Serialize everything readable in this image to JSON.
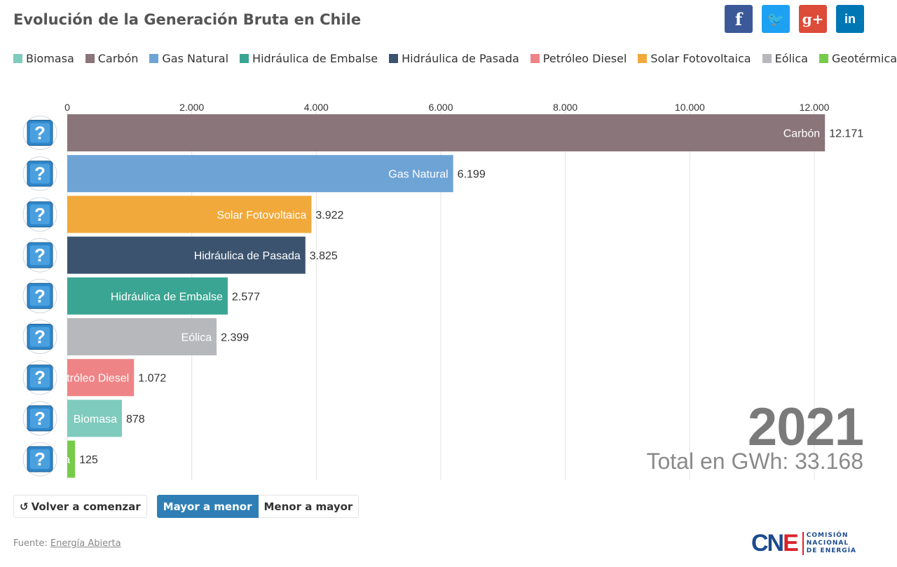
{
  "header": {
    "title": "Evolución de la Generación Bruta en Chile"
  },
  "social": [
    {
      "name": "facebook-icon",
      "glyph": "f",
      "color": "#3b5998"
    },
    {
      "name": "twitter-icon",
      "glyph": "🐦",
      "color": "#1da1f2"
    },
    {
      "name": "google-plus-icon",
      "glyph": "g+",
      "color": "#dd4b39"
    },
    {
      "name": "linkedin-icon",
      "glyph": "in",
      "color": "#0077b5"
    }
  ],
  "legend": [
    {
      "label": "Biomasa",
      "color": "#7fcbbd"
    },
    {
      "label": "Carbón",
      "color": "#8a757b"
    },
    {
      "label": "Gas Natural",
      "color": "#6ea3d6"
    },
    {
      "label": "Hidráulica de Embalse",
      "color": "#3aa592"
    },
    {
      "label": "Hidráulica de Pasada",
      "color": "#3b536e"
    },
    {
      "label": "Petróleo Diesel",
      "color": "#ef8486"
    },
    {
      "label": "Solar Fotovoltaica",
      "color": "#f2a93b"
    },
    {
      "label": "Eólica",
      "color": "#b6b8bc"
    },
    {
      "label": "Geotérmica",
      "color": "#76cc4a"
    }
  ],
  "chart_data": {
    "type": "bar",
    "orientation": "horizontal",
    "categories": [
      "Carbón",
      "Gas Natural",
      "Solar Fotovoltaica",
      "Hidráulica de Pasada",
      "Hidráulica de Embalse",
      "Eólica",
      "Petróleo Diesel",
      "Biomasa",
      "Geotérmica"
    ],
    "values": [
      12171,
      6199,
      3922,
      3825,
      2577,
      2399,
      1072,
      878,
      125
    ],
    "value_labels": [
      "12.171",
      "6.199",
      "3.922",
      "3.825",
      "2.577",
      "2.399",
      "1.072",
      "878",
      "125"
    ],
    "bar_labels": [
      "Carbón",
      "Gas Natural",
      "Solar Fotovoltaica",
      "Hidráulica de Pasada",
      "Hidráulica de Embalse",
      "Eólica",
      "Petróleo Diesel",
      "Biomasa",
      "Geotérmica"
    ],
    "colors": [
      "#8a757b",
      "#6ea3d6",
      "#f2a93b",
      "#3b536e",
      "#3aa592",
      "#b6b8bc",
      "#ef8486",
      "#7fcbbd",
      "#76cc4a"
    ],
    "xlim": [
      0,
      12000
    ],
    "ticks": [
      0,
      2000,
      4000,
      6000,
      8000,
      10000,
      12000
    ],
    "tick_labels": [
      "0",
      "2.000",
      "4.000",
      "6.000",
      "8.000",
      "10.000",
      "12.000"
    ],
    "axis_position": "top",
    "grid": true,
    "legend_position": "top",
    "icon": "unknown-image-icon"
  },
  "overlay": {
    "year": "2021",
    "total": "Total en GWh: 33.168"
  },
  "controls": {
    "restart_label": "Volver a comenzar",
    "desc_label": "Mayor a menor",
    "asc_label": "Menor a mayor"
  },
  "footer": {
    "source_prefix": "Fuente:",
    "source_link": "Energía Abierta",
    "logo_mark_a": "CN",
    "logo_mark_b": "E",
    "logo_line1": "COMISIÓN",
    "logo_line2": "NACIONAL",
    "logo_line3": "DE ENERGÍA"
  }
}
